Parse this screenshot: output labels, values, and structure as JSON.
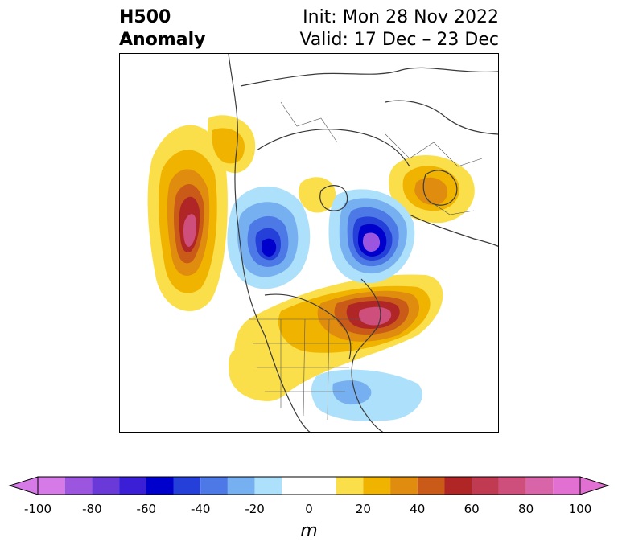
{
  "title": {
    "left_line1": "H500",
    "left_line2": "Anomaly",
    "right_line1": "Init: Mon 28 Nov 2022",
    "right_line2": "Valid: 17 Dec – 23 Dec"
  },
  "colorbar": {
    "unit": "m",
    "ticks": [
      "-100",
      "-80",
      "-60",
      "-40",
      "-20",
      "0",
      "20",
      "40",
      "60",
      "80",
      "100"
    ],
    "bins": [
      {
        "from": -100,
        "to": -90,
        "color": "#d67ae8"
      },
      {
        "from": -90,
        "to": -80,
        "color": "#9b55de"
      },
      {
        "from": -80,
        "to": -70,
        "color": "#6a3ad8"
      },
      {
        "from": -70,
        "to": -60,
        "color": "#3a1fd6"
      },
      {
        "from": -60,
        "to": -50,
        "color": "#0000cc"
      },
      {
        "from": -50,
        "to": -40,
        "color": "#2440d8"
      },
      {
        "from": -40,
        "to": -30,
        "color": "#4d79e6"
      },
      {
        "from": -30,
        "to": -20,
        "color": "#77b0f0"
      },
      {
        "from": -20,
        "to": -10,
        "color": "#ade0fa"
      },
      {
        "from": -10,
        "to": 10,
        "color": "#ffffff"
      },
      {
        "from": 10,
        "to": 20,
        "color": "#fbdf4a"
      },
      {
        "from": 20,
        "to": 30,
        "color": "#f0b400"
      },
      {
        "from": 30,
        "to": 40,
        "color": "#e08c0e"
      },
      {
        "from": 40,
        "to": 50,
        "color": "#c95a17"
      },
      {
        "from": 50,
        "to": 60,
        "color": "#b02626"
      },
      {
        "from": 60,
        "to": 70,
        "color": "#c03a52"
      },
      {
        "from": 70,
        "to": 80,
        "color": "#cf4f7c"
      },
      {
        "from": 80,
        "to": 90,
        "color": "#d865a8"
      },
      {
        "from": 90,
        "to": 100,
        "color": "#e26fd2"
      }
    ],
    "under_color": "#d67ae8",
    "over_color": "#e26fd2"
  },
  "anomalies": [
    {
      "id": "ne-pacific-ridge",
      "sign": "positive",
      "peak_m": 90
    },
    {
      "id": "n-atlantic-ridge",
      "sign": "positive",
      "peak_m": 80
    },
    {
      "id": "scandinavia-ridge",
      "sign": "positive",
      "peak_m": 30
    },
    {
      "id": "arctic-ridge",
      "sign": "positive",
      "peak_m": 20
    },
    {
      "id": "western-us-ridge",
      "sign": "positive",
      "peak_m": 20
    },
    {
      "id": "siberia-trough",
      "sign": "negative",
      "peak_m": -65
    },
    {
      "id": "n-canada-trough",
      "sign": "negative",
      "peak_m": -60
    },
    {
      "id": "se-us-trough",
      "sign": "negative",
      "peak_m": -30
    }
  ]
}
